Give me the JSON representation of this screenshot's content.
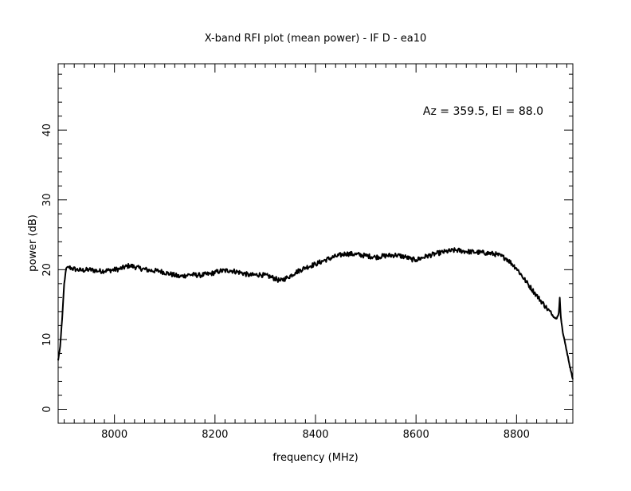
{
  "chart_data": {
    "type": "line",
    "title": "X-band RFI plot (mean power) - IF D - ea10",
    "xlabel": "frequency (MHz)",
    "ylabel": "power (dB)",
    "annotation": "Az = 359.5, El = 88.0",
    "xlim": [
      7888,
      8912
    ],
    "ylim": [
      -2,
      49.5
    ],
    "x_ticks": [
      8000,
      8200,
      8400,
      8600,
      8800
    ],
    "y_ticks": [
      0,
      10,
      20,
      30,
      40
    ],
    "grid": false,
    "line_color": "#000000",
    "series": [
      {
        "x": [
          7888,
          7892,
          7896,
          7900,
          7904,
          7908,
          7915,
          7925,
          7935,
          7950,
          7970,
          7990,
          8010,
          8030,
          8050,
          8070,
          8090,
          8110,
          8130,
          8150,
          8170,
          8190,
          8210,
          8230,
          8250,
          8270,
          8290,
          8310,
          8330,
          8345,
          8360,
          8380,
          8400,
          8420,
          8440,
          8460,
          8480,
          8500,
          8520,
          8540,
          8560,
          8580,
          8590,
          8600,
          8620,
          8640,
          8660,
          8680,
          8700,
          8720,
          8740,
          8760,
          8780,
          8800,
          8820,
          8840,
          8860,
          8875,
          8880,
          8884,
          8886,
          8888,
          8892,
          8900,
          8908,
          8912
        ],
        "y": [
          7,
          9,
          13,
          18,
          20.2,
          20.4,
          20.2,
          20.0,
          19.9,
          20.0,
          19.8,
          19.9,
          20.1,
          20.6,
          20.2,
          19.9,
          19.8,
          19.4,
          19.0,
          19.3,
          19.2,
          19.4,
          19.8,
          19.9,
          19.6,
          19.2,
          19.3,
          19.0,
          18.4,
          18.9,
          19.6,
          20.3,
          20.8,
          21.4,
          21.9,
          22.3,
          22.2,
          22.0,
          21.8,
          22.0,
          22.1,
          21.8,
          21.5,
          21.4,
          21.9,
          22.3,
          22.6,
          22.8,
          22.6,
          22.5,
          22.4,
          22.2,
          21.6,
          20.2,
          18.2,
          16.3,
          14.5,
          13.2,
          13.0,
          13.8,
          16.0,
          13.3,
          11.0,
          8.3,
          5.5,
          4.3
        ]
      }
    ]
  }
}
